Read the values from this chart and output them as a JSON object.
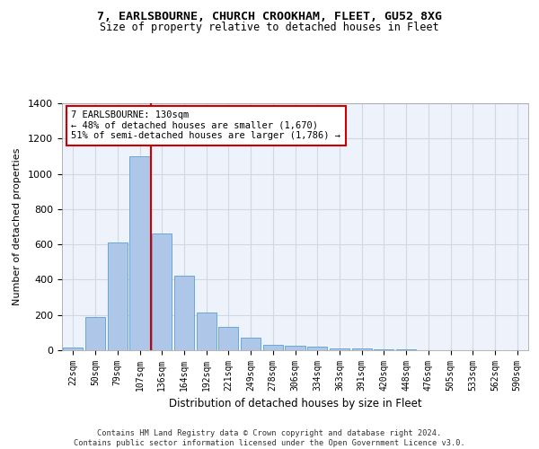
{
  "title1": "7, EARLSBOURNE, CHURCH CROOKHAM, FLEET, GU52 8XG",
  "title2": "Size of property relative to detached houses in Fleet",
  "xlabel": "Distribution of detached houses by size in Fleet",
  "ylabel": "Number of detached properties",
  "categories": [
    "22sqm",
    "50sqm",
    "79sqm",
    "107sqm",
    "136sqm",
    "164sqm",
    "192sqm",
    "221sqm",
    "249sqm",
    "278sqm",
    "306sqm",
    "334sqm",
    "363sqm",
    "391sqm",
    "420sqm",
    "448sqm",
    "476sqm",
    "505sqm",
    "533sqm",
    "562sqm",
    "590sqm"
  ],
  "values": [
    15,
    190,
    610,
    1100,
    660,
    425,
    215,
    130,
    70,
    30,
    25,
    20,
    12,
    8,
    5,
    3,
    1,
    1,
    0,
    0,
    0
  ],
  "bar_color": "#aec6e8",
  "bar_edge_color": "#5a9fd4",
  "vline_color": "#cc0000",
  "annotation_text": "7 EARLSBOURNE: 130sqm\n← 48% of detached houses are smaller (1,670)\n51% of semi-detached houses are larger (1,786) →",
  "annotation_box_color": "#ffffff",
  "annotation_box_edge": "#cc0000",
  "grid_color": "#d0d8e8",
  "background_color": "#eef2fa",
  "footer_text": "Contains HM Land Registry data © Crown copyright and database right 2024.\nContains public sector information licensed under the Open Government Licence v3.0.",
  "ylim": [
    0,
    1400
  ],
  "yticks": [
    0,
    200,
    400,
    600,
    800,
    1000,
    1200,
    1400
  ],
  "title1_fontsize": 9.5,
  "title2_fontsize": 8.5
}
